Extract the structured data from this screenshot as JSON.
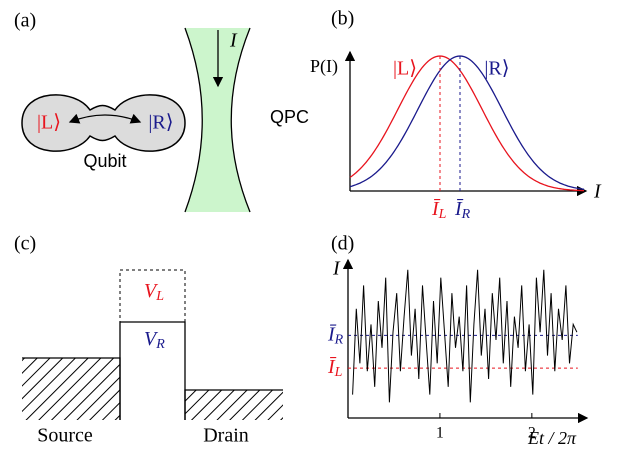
{
  "panel_a": {
    "label": "(a)",
    "left_state": "|L⟩",
    "right_state": "|R⟩",
    "qubit": "Qubit",
    "current": "I",
    "qpc": "QPC"
  },
  "panel_b": {
    "label": "(b)",
    "y_axis": "P(I)",
    "x_axis": "I",
    "left_state": "|L⟩",
    "right_state": "|R⟩",
    "mean_L": {
      "symbol": "Ī",
      "subscript": "L"
    },
    "mean_R": {
      "symbol": "Ī",
      "subscript": "R"
    }
  },
  "panel_c": {
    "label": "(c)",
    "v_left": {
      "symbol": "V",
      "subscript": "L"
    },
    "v_right": {
      "symbol": "V",
      "subscript": "R"
    },
    "source": "Source",
    "drain": "Drain"
  },
  "chart_data": {
    "type": "line",
    "label": "(d)",
    "y_label": "I",
    "x_label": "Et / 2π",
    "xlim": [
      0,
      2.6
    ],
    "xticks": [
      1,
      2
    ],
    "ylim": [
      0,
      1
    ],
    "x": [
      0.05,
      0.09,
      0.13,
      0.17,
      0.21,
      0.25,
      0.29,
      0.33,
      0.37,
      0.41,
      0.45,
      0.49,
      0.53,
      0.57,
      0.61,
      0.65,
      0.69,
      0.73,
      0.77,
      0.81,
      0.85,
      0.89,
      0.93,
      0.97,
      1.01,
      1.05,
      1.09,
      1.13,
      1.17,
      1.21,
      1.25,
      1.29,
      1.33,
      1.37,
      1.41,
      1.45,
      1.49,
      1.53,
      1.57,
      1.61,
      1.65,
      1.69,
      1.73,
      1.77,
      1.81,
      1.85,
      1.89,
      1.93,
      1.97,
      2.01,
      2.05,
      2.09,
      2.13,
      2.17,
      2.21,
      2.25,
      2.29,
      2.33,
      2.37,
      2.41,
      2.45,
      2.49
    ],
    "series": [
      {
        "color": "#000000",
        "values": [
          0.15,
          0.7,
          0.35,
          0.85,
          0.3,
          0.6,
          0.2,
          0.75,
          0.45,
          0.9,
          0.1,
          0.55,
          0.8,
          0.3,
          0.65,
          0.95,
          0.4,
          0.7,
          0.25,
          0.85,
          0.5,
          0.15,
          0.75,
          0.35,
          0.9,
          0.55,
          0.2,
          0.8,
          0.45,
          0.65,
          0.3,
          0.85,
          0.1,
          0.6,
          0.95,
          0.4,
          0.7,
          0.25,
          0.8,
          0.5,
          0.9,
          0.35,
          0.75,
          0.2,
          0.65,
          0.45,
          0.85,
          0.3,
          0.6,
          0.15,
          0.9,
          0.55,
          0.95,
          0.4,
          0.8,
          0.3,
          0.7,
          0.5,
          0.85,
          0.35,
          0.6,
          0.55
        ]
      }
    ],
    "reference_lines": [
      {
        "value": 0.53,
        "color": "#1a1a8c",
        "symbol": "Ī",
        "subscript": "R"
      },
      {
        "value": 0.32,
        "color": "#e8141e",
        "symbol": "Ī",
        "subscript": "L"
      }
    ]
  }
}
